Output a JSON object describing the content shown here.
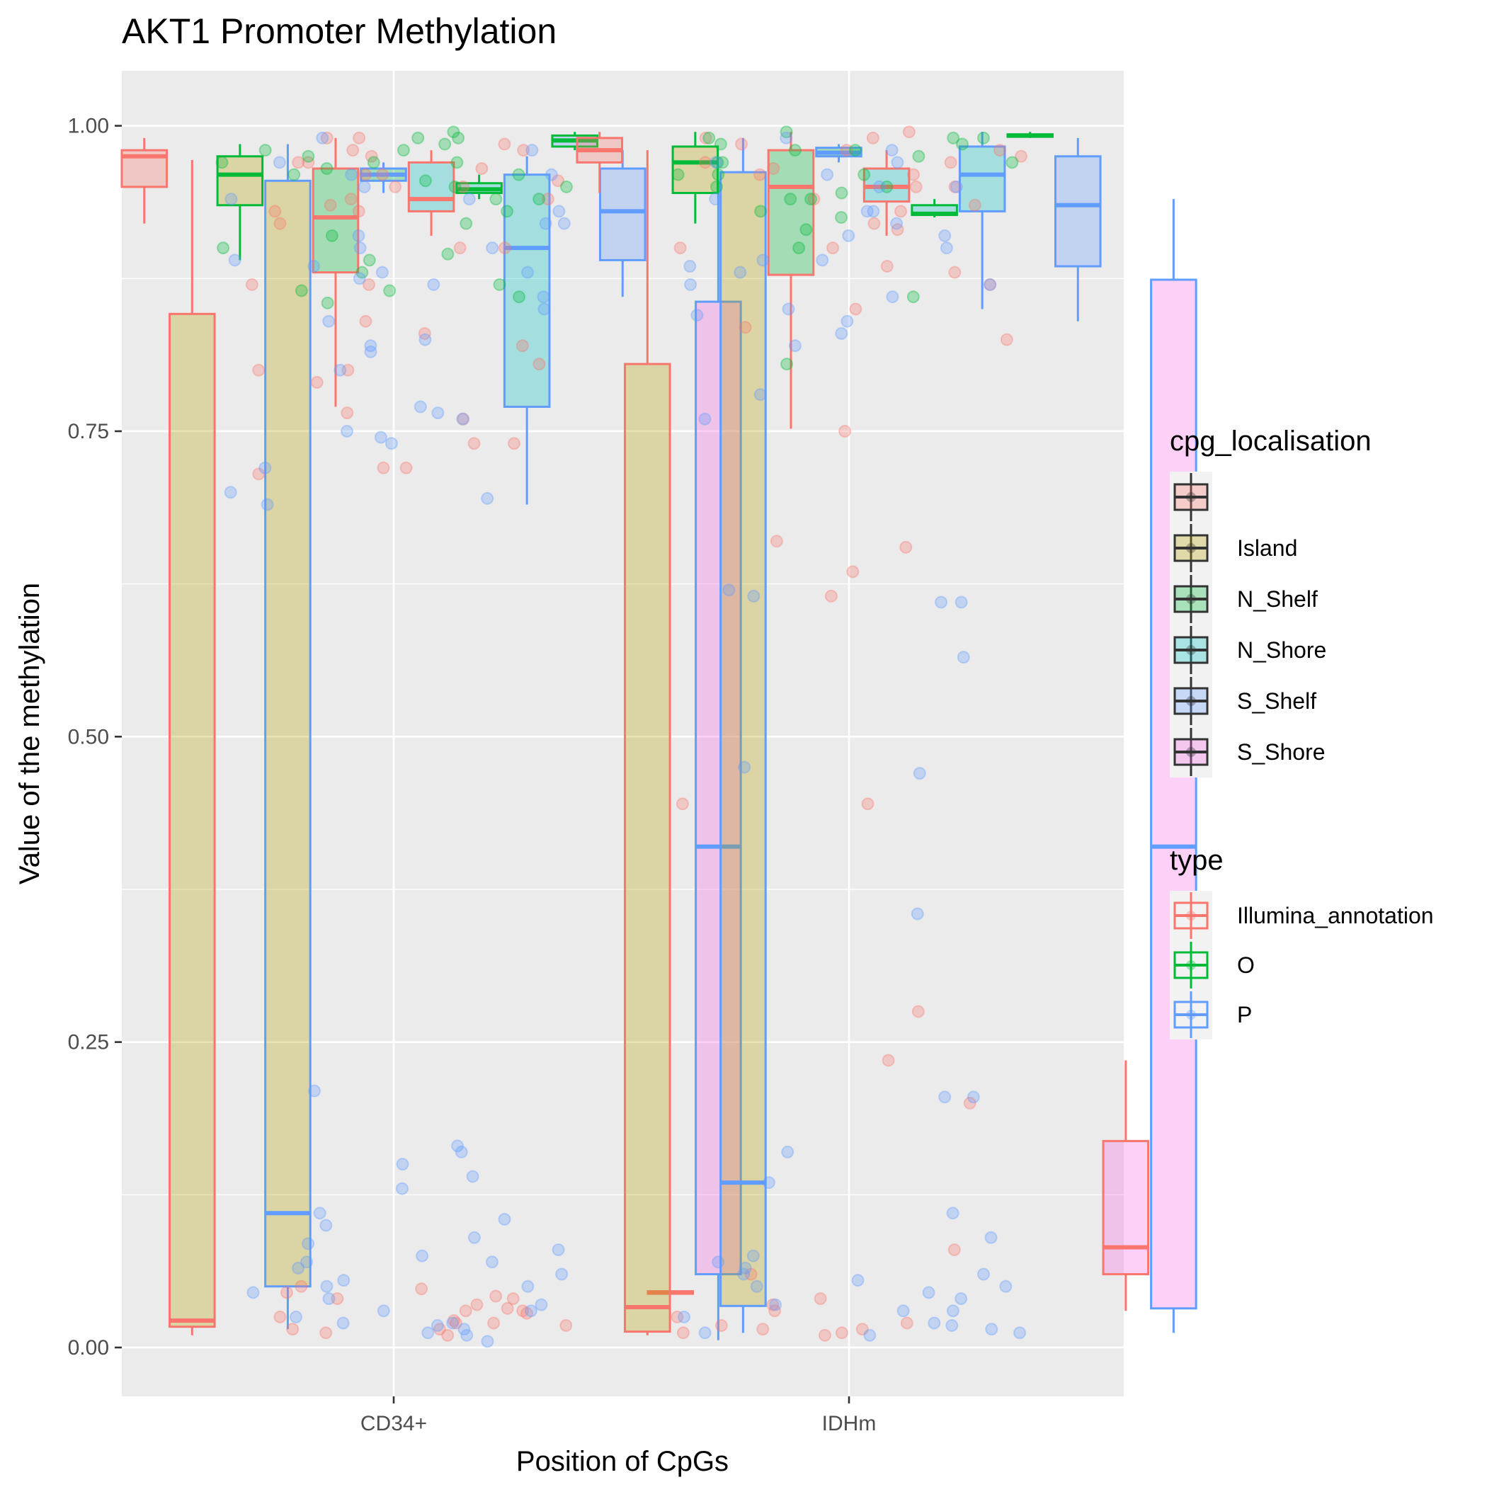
{
  "chart_data": {
    "type": "boxplot",
    "title": "AKT1 Promoter Methylation",
    "xlabel": "Position of CpGs",
    "ylabel": "Value of the methylation",
    "categories": [
      "CD34+",
      "IDHm"
    ],
    "y_ticks": [
      0.0,
      0.25,
      0.5,
      0.75,
      1.0
    ],
    "y_tick_labels": [
      "0.00",
      "0.25",
      "0.50",
      "0.75",
      "1.00"
    ],
    "ylim": [
      -0.04,
      1.045
    ],
    "grid": true,
    "legend_position": "right",
    "fill_legend": {
      "title": "cpg_localisation",
      "entries": [
        {
          "label": "",
          "color": "#F8766D"
        },
        {
          "label": "Island",
          "color": "#B79F00"
        },
        {
          "label": "N_Shelf",
          "color": "#00BA38"
        },
        {
          "label": "N_Shore",
          "color": "#00BFC4"
        },
        {
          "label": "S_Shelf",
          "color": "#619CFF"
        },
        {
          "label": "S_Shore",
          "color": "#F564E3"
        }
      ]
    },
    "color_legend": {
      "title": "type",
      "entries": [
        {
          "label": "Illumina_annotation",
          "color": "#F8766D"
        },
        {
          "label": "O",
          "color": "#00BA38"
        },
        {
          "label": "P",
          "color": "#619CFF"
        }
      ]
    },
    "boxes": [
      {
        "group": "CD34+",
        "offset": -0.365,
        "width": 0.07,
        "color": "Illumina_annotation",
        "fill": "",
        "min": 0.92,
        "q1": 0.95,
        "median": 0.975,
        "q3": 0.98,
        "max": 0.99
      },
      {
        "group": "CD34+",
        "offset": -0.295,
        "width": 0.07,
        "color": "Illumina_annotation",
        "fill": "Island",
        "min": 0.01,
        "q1": 0.017,
        "median": 0.022,
        "q3": 0.846,
        "max": 0.972
      },
      {
        "group": "CD34+",
        "offset": -0.225,
        "width": 0.07,
        "color": "O",
        "fill": "Island",
        "min": 0.89,
        "q1": 0.935,
        "median": 0.96,
        "q3": 0.975,
        "max": 0.985
      },
      {
        "group": "CD34+",
        "offset": -0.155,
        "width": 0.07,
        "color": "P",
        "fill": "Island",
        "min": 0.015,
        "q1": 0.05,
        "median": 0.11,
        "q3": 0.955,
        "max": 0.985
      },
      {
        "group": "CD34+",
        "offset": -0.085,
        "width": 0.07,
        "color": "Illumina_annotation",
        "fill": "N_Shelf",
        "min": 0.77,
        "q1": 0.88,
        "median": 0.925,
        "q3": 0.965,
        "max": 0.99
      },
      {
        "group": "CD34+",
        "offset": -0.015,
        "width": 0.07,
        "color": "P",
        "fill": "N_Shelf",
        "min": 0.945,
        "q1": 0.955,
        "median": 0.96,
        "q3": 0.965,
        "max": 0.97
      },
      {
        "group": "CD34+",
        "offset": 0.055,
        "width": 0.07,
        "color": "Illumina_annotation",
        "fill": "N_Shore",
        "min": 0.91,
        "q1": 0.93,
        "median": 0.94,
        "q3": 0.97,
        "max": 0.98
      },
      {
        "group": "CD34+",
        "offset": 0.125,
        "width": 0.07,
        "color": "O",
        "fill": "N_Shore",
        "min": 0.94,
        "q1": 0.945,
        "median": 0.948,
        "q3": 0.953,
        "max": 0.96
      },
      {
        "group": "CD34+",
        "offset": 0.195,
        "width": 0.07,
        "color": "P",
        "fill": "N_Shore",
        "min": 0.69,
        "q1": 0.77,
        "median": 0.9,
        "q3": 0.96,
        "max": 0.975
      },
      {
        "group": "CD34+",
        "offset": 0.265,
        "width": 0.07,
        "color": "O",
        "fill": "S_Shelf",
        "min": 0.98,
        "q1": 0.983,
        "median": 0.988,
        "q3": 0.992,
        "max": 0.995
      },
      {
        "group": "CD34+",
        "offset": 0.335,
        "width": 0.07,
        "color": "P",
        "fill": "S_Shelf",
        "min": 0.86,
        "q1": 0.89,
        "median": 0.93,
        "q3": 0.965,
        "max": 0.98
      },
      {
        "group": "CD34+",
        "offset": 0.405,
        "width": 0.07,
        "color": "Illumina_annotation",
        "fill": "S_Shore",
        "min": 0.044,
        "q1": 0.044,
        "median": 0.045,
        "q3": 0.046,
        "max": 0.046
      },
      {
        "group": "CD34+",
        "offset": 0.475,
        "width": 0.07,
        "color": "P",
        "fill": "S_Shore",
        "min": 0.006,
        "q1": 0.06,
        "median": 0.41,
        "q3": 0.856,
        "max": 0.955
      },
      {
        "group": "IDHm",
        "offset": -0.365,
        "width": 0.07,
        "color": "Illumina_annotation",
        "fill": "",
        "min": 0.945,
        "q1": 0.97,
        "median": 0.98,
        "q3": 0.99,
        "max": 0.995
      },
      {
        "group": "IDHm",
        "offset": -0.295,
        "width": 0.07,
        "color": "Illumina_annotation",
        "fill": "Island",
        "min": 0.01,
        "q1": 0.013,
        "median": 0.033,
        "q3": 0.805,
        "max": 0.98
      },
      {
        "group": "IDHm",
        "offset": -0.225,
        "width": 0.07,
        "color": "O",
        "fill": "Island",
        "min": 0.92,
        "q1": 0.945,
        "median": 0.97,
        "q3": 0.983,
        "max": 0.995
      },
      {
        "group": "IDHm",
        "offset": -0.155,
        "width": 0.07,
        "color": "P",
        "fill": "Island",
        "min": 0.012,
        "q1": 0.034,
        "median": 0.135,
        "q3": 0.962,
        "max": 0.99
      },
      {
        "group": "IDHm",
        "offset": -0.085,
        "width": 0.07,
        "color": "Illumina_annotation",
        "fill": "N_Shelf",
        "min": 0.752,
        "q1": 0.878,
        "median": 0.95,
        "q3": 0.98,
        "max": 0.995
      },
      {
        "group": "IDHm",
        "offset": -0.015,
        "width": 0.07,
        "color": "P",
        "fill": "N_Shelf",
        "min": 0.97,
        "q1": 0.975,
        "median": 0.978,
        "q3": 0.982,
        "max": 0.985
      },
      {
        "group": "IDHm",
        "offset": 0.055,
        "width": 0.07,
        "color": "Illumina_annotation",
        "fill": "N_Shore",
        "min": 0.91,
        "q1": 0.938,
        "median": 0.95,
        "q3": 0.965,
        "max": 0.98
      },
      {
        "group": "IDHm",
        "offset": 0.125,
        "width": 0.07,
        "color": "O",
        "fill": "N_Shore",
        "min": 0.925,
        "q1": 0.927,
        "median": 0.928,
        "q3": 0.935,
        "max": 0.94
      },
      {
        "group": "IDHm",
        "offset": 0.195,
        "width": 0.07,
        "color": "P",
        "fill": "N_Shore",
        "min": 0.85,
        "q1": 0.93,
        "median": 0.96,
        "q3": 0.983,
        "max": 0.995
      },
      {
        "group": "IDHm",
        "offset": 0.265,
        "width": 0.07,
        "color": "O",
        "fill": "S_Shelf",
        "min": 0.99,
        "q1": 0.991,
        "median": 0.992,
        "q3": 0.993,
        "max": 0.995
      },
      {
        "group": "IDHm",
        "offset": 0.335,
        "width": 0.07,
        "color": "P",
        "fill": "S_Shelf",
        "min": 0.84,
        "q1": 0.885,
        "median": 0.935,
        "q3": 0.975,
        "max": 0.99
      },
      {
        "group": "IDHm",
        "offset": 0.405,
        "width": 0.07,
        "color": "Illumina_annotation",
        "fill": "S_Shore",
        "min": 0.03,
        "q1": 0.06,
        "median": 0.082,
        "q3": 0.169,
        "max": 0.235
      },
      {
        "group": "IDHm",
        "offset": 0.475,
        "width": 0.07,
        "color": "P",
        "fill": "S_Shore",
        "min": 0.012,
        "q1": 0.032,
        "median": 0.41,
        "q3": 0.874,
        "max": 0.94
      }
    ],
    "points": {
      "Illumina_annotation": {
        "CD34+": [
          0.01,
          0.012,
          0.015,
          0.018,
          0.02,
          0.022,
          0.025,
          0.028,
          0.03,
          0.032,
          0.035,
          0.04,
          0.042,
          0.045,
          0.048,
          0.05,
          0.015,
          0.02,
          0.03,
          0.04,
          0.715,
          0.72,
          0.74,
          0.765,
          0.79,
          0.8,
          0.805,
          0.82,
          0.84,
          0.87,
          0.9,
          0.92,
          0.93,
          0.935,
          0.94,
          0.95,
          0.955,
          0.96,
          0.965,
          0.97,
          0.975,
          0.98,
          0.985,
          0.99,
          0.72,
          0.74,
          0.76,
          0.8,
          0.83,
          0.87,
          0.9,
          0.93,
          0.95,
          0.97,
          0.98,
          0.99,
          0.96,
          0.94
        ],
        "IDHm": [
          0.01,
          0.012,
          0.015,
          0.018,
          0.02,
          0.025,
          0.03,
          0.035,
          0.04,
          0.06,
          0.08,
          0.012,
          0.015,
          0.2,
          0.235,
          0.275,
          0.445,
          0.445,
          0.615,
          0.635,
          0.655,
          0.66,
          0.75,
          0.825,
          0.835,
          0.85,
          0.87,
          0.885,
          0.9,
          0.915,
          0.93,
          0.94,
          0.95,
          0.96,
          0.965,
          0.97,
          0.975,
          0.98,
          0.985,
          0.99,
          0.995,
          0.935,
          0.92,
          0.95,
          0.97,
          0.98,
          0.99,
          0.96,
          0.9,
          0.88
        ]
      },
      "O": {
        "CD34+": [
          0.855,
          0.86,
          0.865,
          0.87,
          0.88,
          0.89,
          0.9,
          0.91,
          0.92,
          0.93,
          0.94,
          0.95,
          0.955,
          0.96,
          0.965,
          0.97,
          0.975,
          0.98,
          0.985,
          0.99,
          0.995,
          0.865,
          0.895,
          0.94,
          0.97,
          0.98,
          0.99,
          0.96,
          0.95,
          0.97
        ],
        "IDHm": [
          0.805,
          0.86,
          0.9,
          0.915,
          0.93,
          0.94,
          0.95,
          0.96,
          0.97,
          0.975,
          0.98,
          0.985,
          0.99,
          0.995,
          0.925,
          0.945,
          0.97,
          0.99,
          0.98,
          0.96,
          0.95,
          0.94,
          0.99,
          0.985,
          0.97,
          0.96
        ]
      },
      "P": {
        "CD34+": [
          0.005,
          0.01,
          0.015,
          0.02,
          0.025,
          0.03,
          0.035,
          0.04,
          0.045,
          0.05,
          0.055,
          0.06,
          0.065,
          0.07,
          0.075,
          0.08,
          0.085,
          0.09,
          0.1,
          0.105,
          0.11,
          0.13,
          0.14,
          0.15,
          0.16,
          0.165,
          0.21,
          0.69,
          0.695,
          0.7,
          0.72,
          0.74,
          0.745,
          0.75,
          0.76,
          0.765,
          0.77,
          0.8,
          0.815,
          0.82,
          0.825,
          0.84,
          0.85,
          0.86,
          0.87,
          0.875,
          0.88,
          0.885,
          0.89,
          0.9,
          0.91,
          0.92,
          0.93,
          0.94,
          0.95,
          0.96,
          0.97,
          0.98,
          0.99,
          0.96,
          0.94,
          0.92,
          0.9,
          0.88,
          0.02,
          0.03,
          0.05,
          0.07,
          0.012,
          0.018
        ],
        "IDHm": [
          0.01,
          0.012,
          0.015,
          0.02,
          0.025,
          0.03,
          0.035,
          0.04,
          0.045,
          0.05,
          0.055,
          0.06,
          0.065,
          0.07,
          0.075,
          0.09,
          0.11,
          0.135,
          0.16,
          0.205,
          0.205,
          0.355,
          0.47,
          0.475,
          0.565,
          0.61,
          0.61,
          0.615,
          0.62,
          0.76,
          0.78,
          0.82,
          0.83,
          0.84,
          0.845,
          0.85,
          0.86,
          0.87,
          0.88,
          0.885,
          0.89,
          0.9,
          0.91,
          0.92,
          0.93,
          0.94,
          0.95,
          0.96,
          0.97,
          0.98,
          0.99,
          0.97,
          0.95,
          0.93,
          0.91,
          0.89,
          0.87,
          0.012,
          0.018,
          0.03,
          0.05,
          0.06
        ]
      }
    }
  }
}
